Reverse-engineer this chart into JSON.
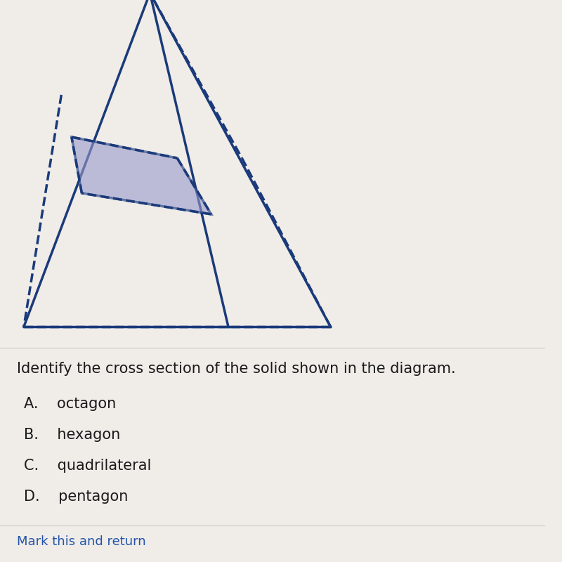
{
  "bg_color": "#f0ece8",
  "pyramid_color": "#1a3a7a",
  "pyramid_lw": 2.5,
  "cross_section_fill": "#9999cc",
  "cross_section_alpha": 0.6,
  "cross_section_edge_color": "#1a3a7a",
  "dashed_color": "#1a3a7a",
  "question_text": "Identify the cross section of the solid shown in the diagram.",
  "choices": [
    "A.    octagon",
    "B.    hexagon",
    "C.    quadrilateral",
    "D.    pentagon"
  ],
  "link_text": "Mark this and return",
  "link_color": "#2255aa",
  "text_color": "#1a1a1a",
  "question_fontsize": 15,
  "choices_fontsize": 15,
  "link_fontsize": 13
}
